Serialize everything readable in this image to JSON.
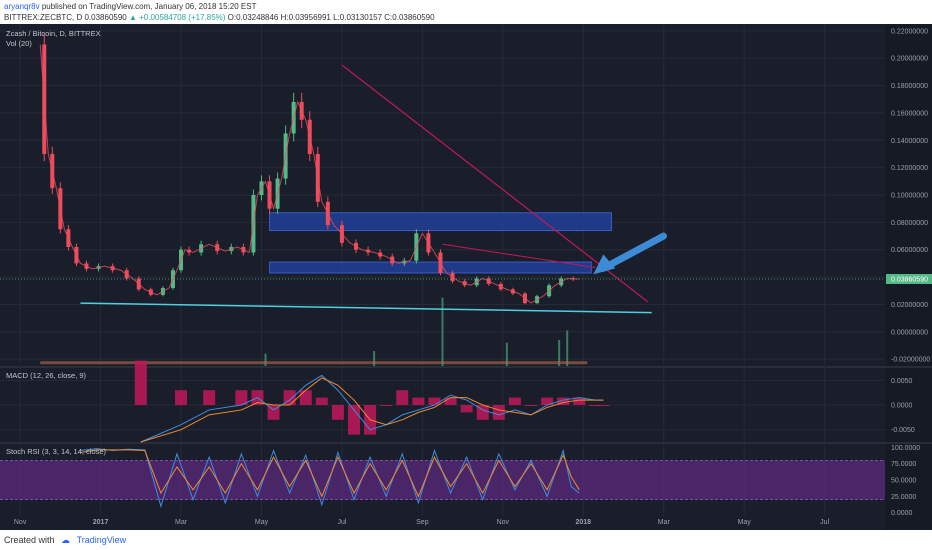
{
  "header": {
    "author": "aryanqr8v",
    "published_text": "published on TradingView.com, January 06, 2018 15:20 EST",
    "symbol_line": "BITTREX:ZECBTC, D",
    "last": "0.03860590",
    "change": "+0.00584708 (+17.85%)",
    "open": "O:0.03248846",
    "high": "H:0.03956991",
    "low": "L:0.03130157",
    "close": "C:0.03860590"
  },
  "legend": {
    "title": "Zcash / Bitcoin, D, BITTREX",
    "vol": "Vol (20)",
    "macd": "MACD (12, 26, close, 9)",
    "stoch": "Stoch RSI (3, 3, 14, 14, close)"
  },
  "footer": {
    "created_with": "Created with",
    "brand": "TradingView"
  },
  "colors": {
    "background": "#1a1e2b",
    "candle_up": "#53b987",
    "candle_down": "#eb4d5c",
    "zone": "#2344a8",
    "trendline": "#c2185b",
    "support": "#4dd0e1",
    "arrow": "#3d8bd6",
    "macd_line": "#3b8ee0",
    "signal_line": "#ef8a2e",
    "hist_neg": "#c2185b",
    "stoch_band": "#6a2c91",
    "k_line": "#3b8ee0",
    "d_line": "#ef8a2e"
  },
  "chart_data": [
    {
      "type": "line",
      "name": "price",
      "title": "Zcash / Bitcoin, D, BITTREX",
      "x_ticks": [
        "Nov",
        "2017",
        "Mar",
        "May",
        "Jul",
        "Sep",
        "Nov",
        "2018",
        "Mar",
        "May",
        "Jul"
      ],
      "x_tick_t": [
        0.5,
        2.5,
        4.5,
        6.5,
        8.5,
        10.5,
        12.5,
        14.5,
        16.5,
        18.5,
        20.5
      ],
      "x_range": [
        0,
        22
      ],
      "y_ticks": [
        "0.22000000",
        "0.20000000",
        "0.18000000",
        "0.16000000",
        "0.14000000",
        "0.12000000",
        "0.10000000",
        "0.08000000",
        "0.06000000",
        "0.04000000",
        "0.02000000",
        "0.00000000",
        "-0.02000000"
      ],
      "y_tick_values": [
        0.22,
        0.2,
        0.18,
        0.16,
        0.14,
        0.12,
        0.1,
        0.08,
        0.06,
        0.04,
        0.02,
        0.0,
        -0.02
      ],
      "ylim": [
        -0.025,
        0.225
      ],
      "last_price_label": "0.03860590",
      "last_price": 0.0386,
      "x": [
        1.0,
        1.2,
        1.4,
        1.6,
        1.8,
        2.0,
        2.3,
        2.6,
        3.0,
        3.3,
        3.6,
        3.9,
        4.2,
        4.4,
        4.6,
        4.8,
        5.2,
        5.6,
        5.9,
        6.2,
        6.4,
        6.6,
        6.8,
        7.0,
        7.2,
        7.4,
        7.6,
        7.8,
        8.0,
        8.3,
        8.7,
        9.0,
        9.3,
        9.6,
        9.9,
        10.2,
        10.5,
        10.8,
        11.1,
        11.4,
        11.7,
        12.0,
        12.3,
        12.6,
        12.9,
        13.2,
        13.5,
        13.8,
        14.1,
        14.4
      ],
      "y": [
        0.21,
        0.13,
        0.105,
        0.075,
        0.062,
        0.05,
        0.046,
        0.048,
        0.045,
        0.039,
        0.031,
        0.027,
        0.032,
        0.045,
        0.06,
        0.058,
        0.064,
        0.059,
        0.062,
        0.058,
        0.1,
        0.11,
        0.09,
        0.112,
        0.145,
        0.168,
        0.155,
        0.13,
        0.095,
        0.078,
        0.065,
        0.06,
        0.058,
        0.055,
        0.05,
        0.052,
        0.072,
        0.058,
        0.043,
        0.037,
        0.034,
        0.039,
        0.035,
        0.031,
        0.028,
        0.021,
        0.026,
        0.034,
        0.039,
        0.0386
      ],
      "volume_events": [
        [
          11.0,
          0.045
        ],
        [
          12.6,
          0.012
        ],
        [
          13.9,
          0.014
        ],
        [
          14.1,
          0.021
        ],
        [
          9.3,
          0.006
        ],
        [
          6.6,
          0.004
        ]
      ],
      "annotations": {
        "resistance_zone_upper": [
          0.074,
          0.087
        ],
        "resistance_zone_lower": [
          0.043,
          0.051
        ],
        "zone_x_range": [
          6.7,
          15.2
        ],
        "zone_lower_x_range": [
          6.7,
          14.7
        ],
        "trendline": [
          [
            8.5,
            0.195
          ],
          [
            16.1,
            0.022
          ]
        ],
        "trendline_2": [
          [
            11.0,
            0.064
          ],
          [
            14.8,
            0.047
          ]
        ],
        "support_line": [
          [
            2.0,
            0.021
          ],
          [
            16.2,
            0.014
          ]
        ]
      }
    },
    {
      "type": "line",
      "name": "MACD",
      "title": "MACD (12, 26, close, 9)",
      "y_ticks": [
        "0.0050",
        "0.0000",
        "-0.0050"
      ],
      "y_tick_values": [
        0.005,
        0.0,
        -0.005
      ],
      "ylim": [
        -0.0075,
        0.0075
      ],
      "x": [
        3.5,
        4.5,
        5.2,
        6.0,
        6.4,
        6.8,
        7.2,
        7.6,
        8.0,
        8.4,
        8.8,
        9.2,
        9.6,
        10.0,
        10.4,
        10.8,
        11.2,
        11.6,
        12.0,
        12.4,
        12.8,
        13.2,
        13.6,
        14.0,
        14.4,
        14.8,
        15.0
      ],
      "macd": [
        -0.012,
        -0.004,
        -0.001,
        0.0,
        0.0015,
        -0.001,
        0.001,
        0.004,
        0.006,
        0.003,
        -0.001,
        -0.005,
        -0.004,
        -0.002,
        -0.001,
        0.0,
        0.002,
        0.001,
        -0.001,
        -0.002,
        -0.001,
        -0.002,
        0.0,
        0.001,
        0.0015,
        0.001,
        0.001
      ],
      "signal": [
        -0.015,
        -0.005,
        -0.002,
        -0.001,
        0.0005,
        0.0,
        0.0,
        0.003,
        0.0055,
        0.004,
        0.001,
        -0.003,
        -0.004,
        -0.003,
        -0.0015,
        -0.0005,
        0.0015,
        0.0015,
        0.0,
        -0.001,
        -0.0015,
        -0.002,
        -0.0005,
        0.0005,
        0.001,
        0.001,
        0.001
      ]
    },
    {
      "type": "line",
      "name": "Stoch RSI",
      "title": "Stoch RSI (3, 3, 14, 14, close)",
      "y_ticks": [
        "100.0000",
        "75.0000",
        "50.0000",
        "25.0000",
        "0.0000"
      ],
      "y_tick_values": [
        100,
        75,
        50,
        25,
        0
      ],
      "ylim": [
        -5,
        105
      ],
      "band": [
        20,
        80
      ],
      "x": [
        2.0,
        2.4,
        2.8,
        3.2,
        3.6,
        4.0,
        4.4,
        4.8,
        5.2,
        5.6,
        6.0,
        6.4,
        6.8,
        7.2,
        7.6,
        8.0,
        8.4,
        8.8,
        9.2,
        9.6,
        10.0,
        10.4,
        10.8,
        11.2,
        11.6,
        12.0,
        12.4,
        12.8,
        13.2,
        13.6,
        14.0,
        14.2,
        14.4
      ],
      "k": [
        95,
        98,
        95,
        97,
        96,
        10,
        90,
        20,
        85,
        15,
        90,
        25,
        95,
        30,
        88,
        12,
        92,
        20,
        85,
        25,
        90,
        15,
        95,
        30,
        85,
        20,
        90,
        35,
        80,
        25,
        95,
        40,
        30
      ],
      "d": [
        92,
        96,
        96,
        96,
        95,
        30,
        70,
        35,
        70,
        30,
        75,
        35,
        85,
        40,
        80,
        25,
        85,
        30,
        75,
        35,
        80,
        25,
        85,
        40,
        75,
        30,
        80,
        40,
        75,
        35,
        88,
        55,
        35
      ]
    }
  ]
}
